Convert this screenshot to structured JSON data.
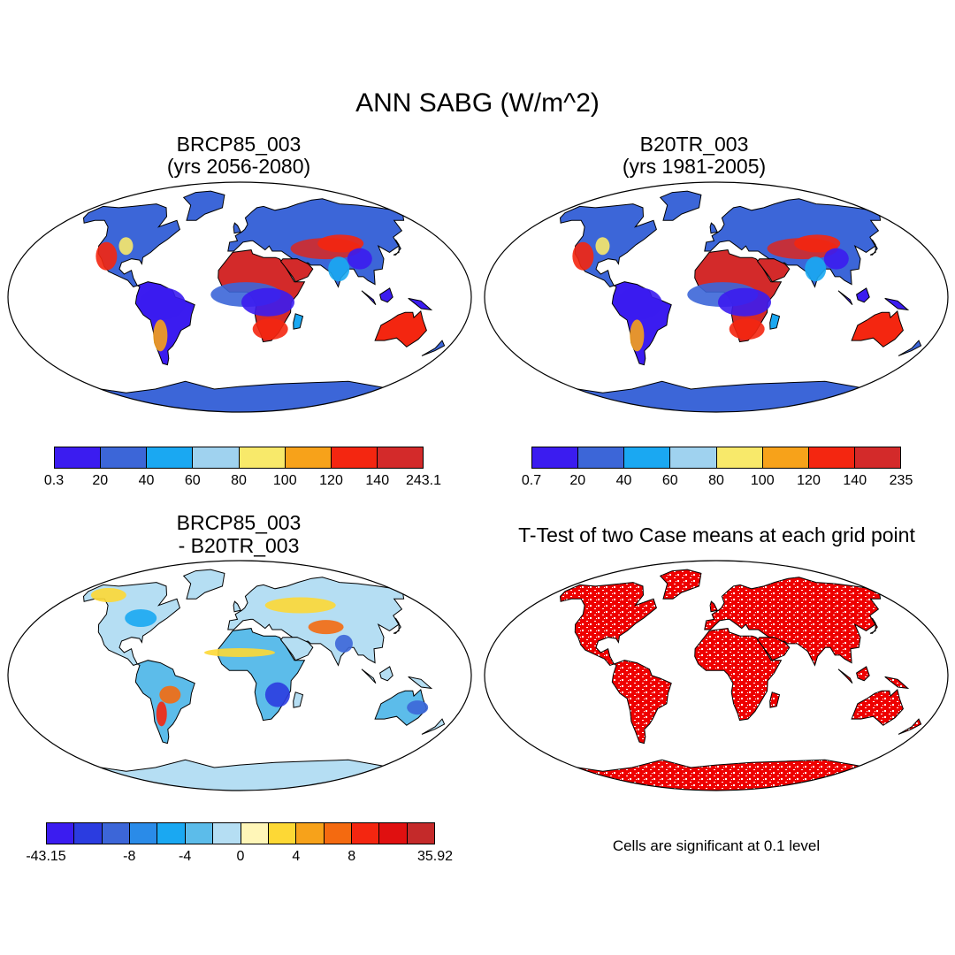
{
  "figure": {
    "title": "ANN SABG (W/m^2)"
  },
  "panels": [
    {
      "id": "p1",
      "title_line1": "BRCP85_003",
      "title_line2": "(yrs 2056-2080)",
      "type": "absolute",
      "colorbar": {
        "colors": [
          "#3b1cf0",
          "#3c66d8",
          "#1aa8f2",
          "#9fd2ef",
          "#f8e96a",
          "#f7a21a",
          "#f42610",
          "#d32a2a"
        ],
        "labels": [
          "0.3",
          "20",
          "40",
          "60",
          "80",
          "100",
          "120",
          "140",
          "243.1"
        ]
      }
    },
    {
      "id": "p2",
      "title_line1": "B20TR_003",
      "title_line2": "(yrs 1981-2005)",
      "type": "absolute",
      "colorbar": {
        "colors": [
          "#3b1cf0",
          "#3c66d8",
          "#1aa8f2",
          "#9fd2ef",
          "#f8e96a",
          "#f7a21a",
          "#f42610",
          "#d32a2a"
        ],
        "labels": [
          "0.7",
          "20",
          "40",
          "60",
          "80",
          "100",
          "120",
          "140",
          "235"
        ]
      }
    },
    {
      "id": "p3",
      "title_line1": "BRCP85_003",
      "title_line2": "- B20TR_003",
      "type": "difference",
      "colorbar": {
        "colors": [
          "#3b1cf0",
          "#2b3ce0",
          "#3c66d8",
          "#2a8be8",
          "#1aa8f2",
          "#5cbcea",
          "#b5def3",
          "#fff6b8",
          "#fdd835",
          "#f7a21a",
          "#f46a10",
          "#f42610",
          "#e01010",
          "#c42a2a"
        ],
        "labels": [
          "-43.15",
          "-8",
          "-4",
          "0",
          "4",
          "8",
          "35.92"
        ]
      }
    },
    {
      "id": "p4",
      "title": "T-Test of two Case means at each grid point",
      "type": "significance",
      "color": "#ee0000",
      "note": "Cells are significant at 0.1 level"
    }
  ]
}
